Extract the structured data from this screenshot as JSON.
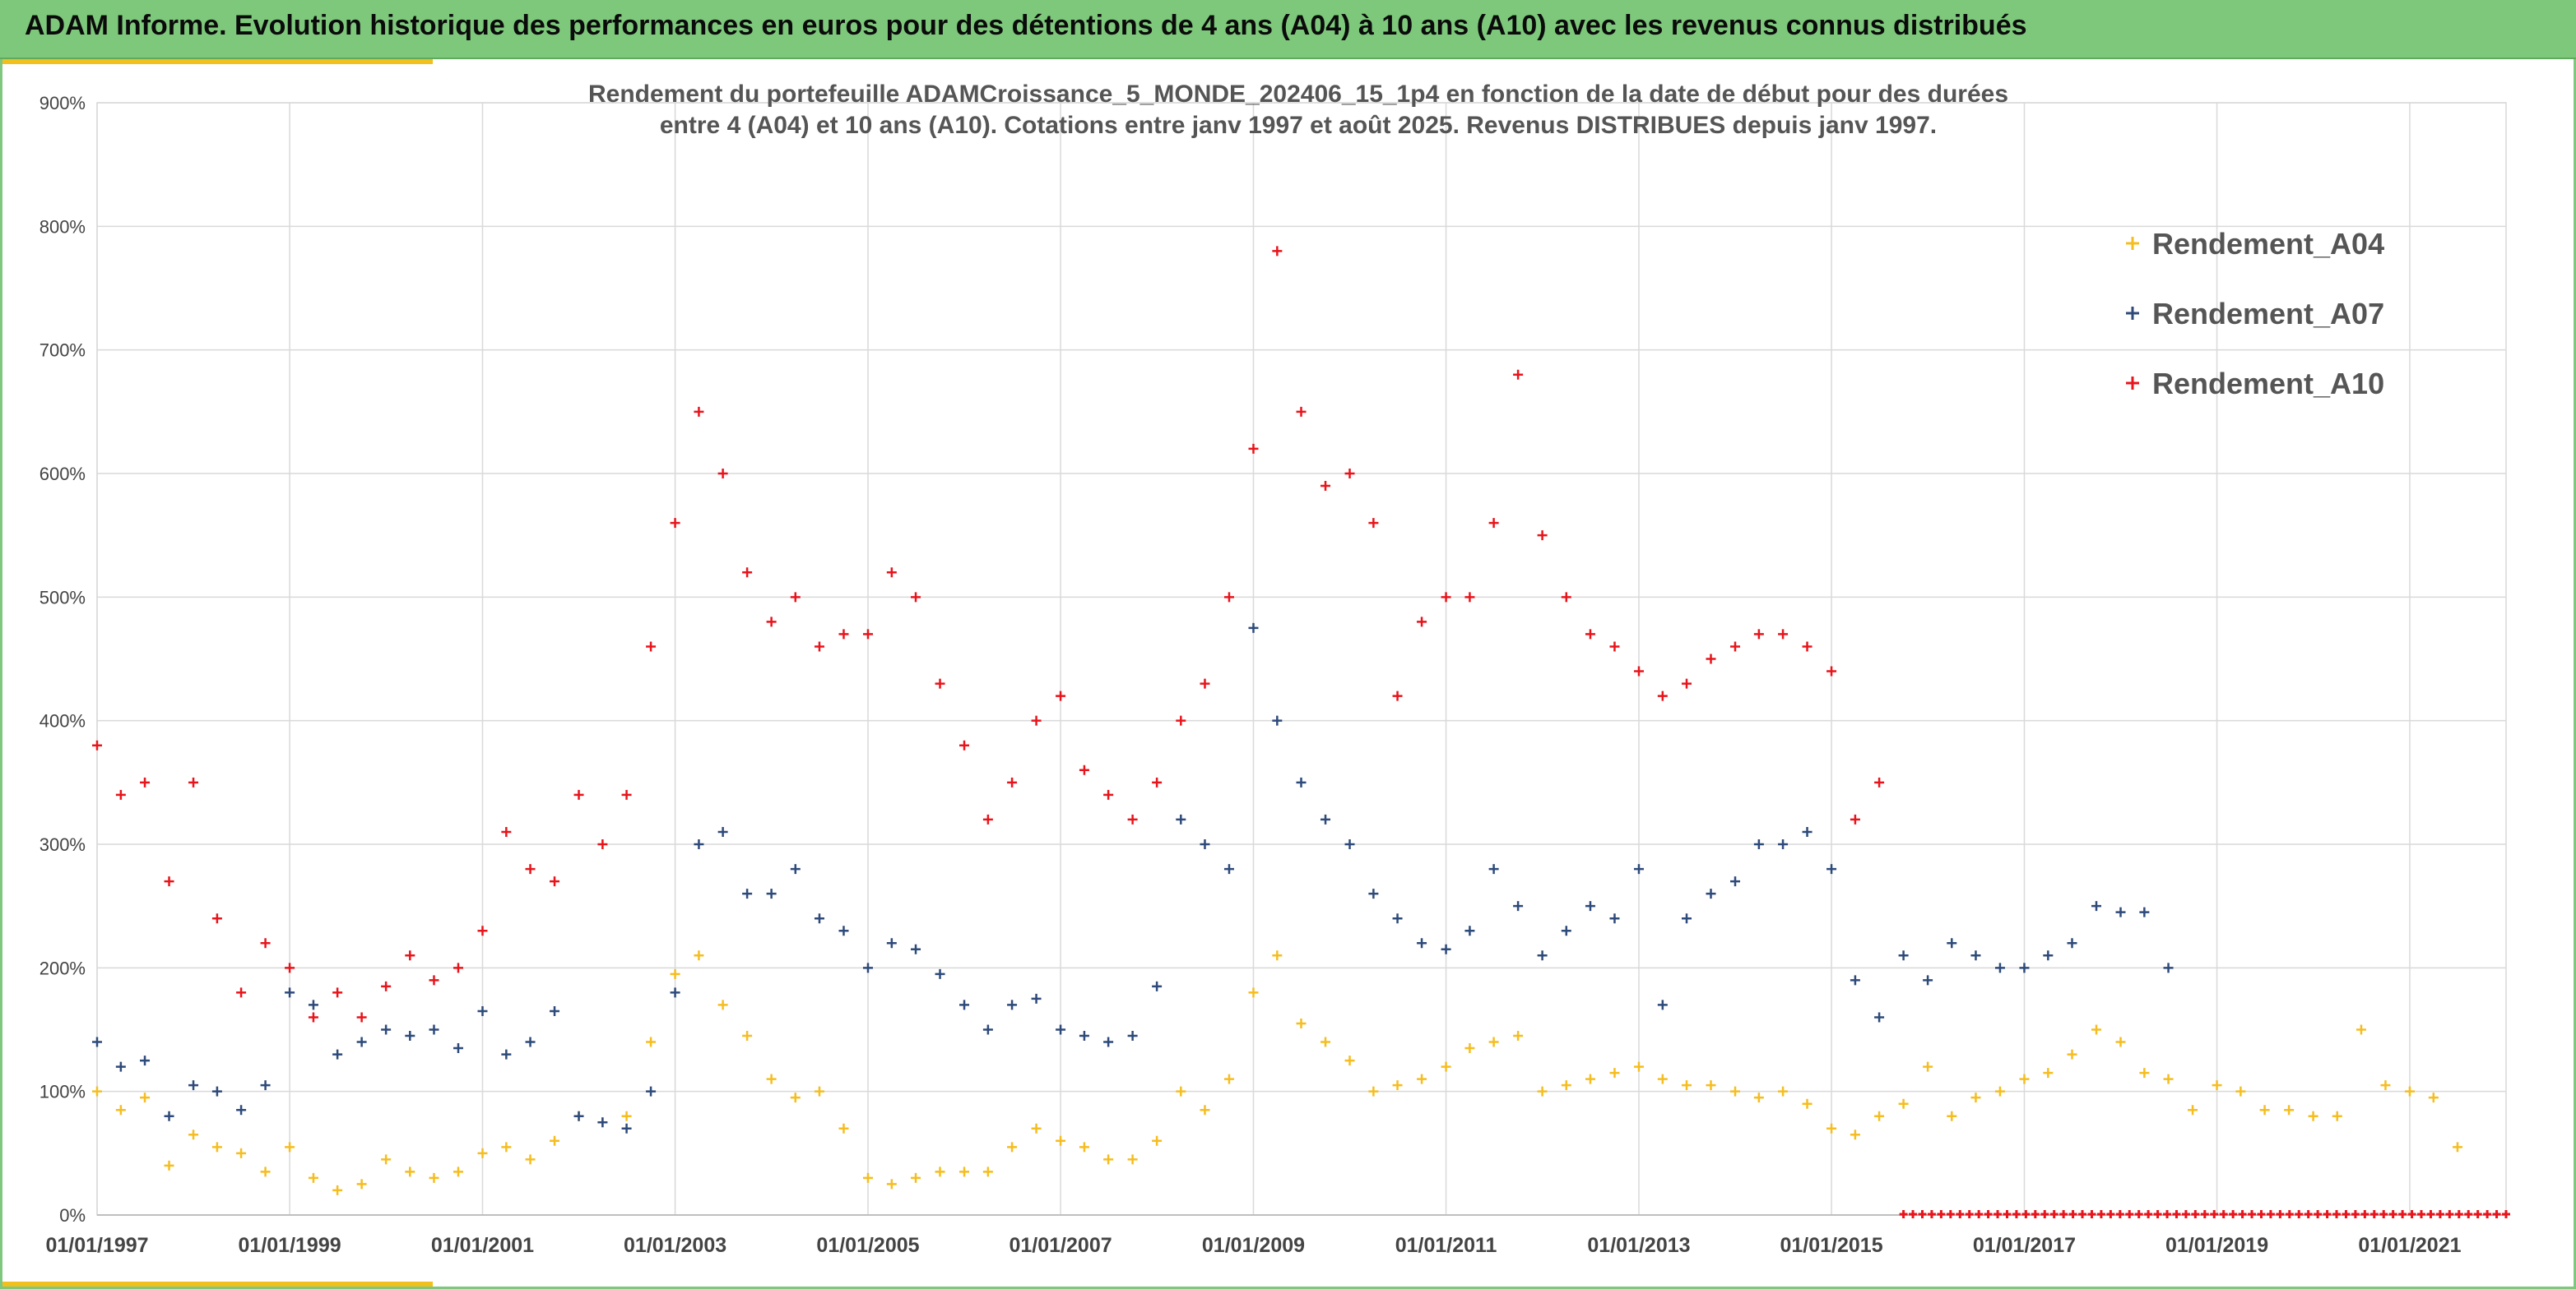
{
  "banner": {
    "title": "ADAM Informe. Evolution historique des performances en euros pour des détentions de 4 ans (A04) à 10 ans (A10) avec les revenus connus distribués"
  },
  "colors": {
    "banner_bg": "#7dc87b",
    "accent_gold": "#f2c01c",
    "A04": "#f5bd1f",
    "A07": "#2d4a7a",
    "A10": "#e8141b"
  },
  "chart_data": {
    "type": "scatter",
    "title_lines": [
      "Rendement du portefeuille ADAMCroissance_5_MONDE_202406_15_1p4  en fonction de la date de début pour des durées",
      "entre 4 (A04) et 10 ans (A10). Cotations entre janv 1997 et août 2025. Revenus DISTRIBUES depuis janv 1997."
    ],
    "xlabel": "",
    "ylabel": "",
    "xlim": [
      "1997-01-01",
      "2022-01-01"
    ],
    "ylim": [
      0,
      900
    ],
    "y_ticks": [
      0,
      100,
      200,
      300,
      400,
      500,
      600,
      700,
      800,
      900
    ],
    "y_tick_labels": [
      "0%",
      "100%",
      "200%",
      "300%",
      "400%",
      "500%",
      "600%",
      "700%",
      "800%",
      "900%"
    ],
    "x_ticks": [
      "1997-01-01",
      "1999-01-01",
      "2001-01-01",
      "2003-01-01",
      "2005-01-01",
      "2007-01-01",
      "2009-01-01",
      "2011-01-01",
      "2013-01-01",
      "2015-01-01",
      "2017-01-01",
      "2019-01-01",
      "2021-01-01"
    ],
    "x_tick_labels": [
      "01/01/1997",
      "01/01/1999",
      "01/01/2001",
      "01/01/2003",
      "01/01/2005",
      "01/01/2007",
      "01/01/2009",
      "01/01/2011",
      "01/01/2013",
      "01/01/2015",
      "01/01/2017",
      "01/01/2019",
      "01/01/2021"
    ],
    "grid": true,
    "marker": "+",
    "legend_position": "top-right",
    "series": [
      {
        "name": "Rendement_A04",
        "color": "#f5bd1f",
        "x": [
          "1997-01-01",
          "1997-04-01",
          "1997-07-01",
          "1997-10-01",
          "1998-01-01",
          "1998-04-01",
          "1998-07-01",
          "1998-10-01",
          "1999-01-01",
          "1999-04-01",
          "1999-07-01",
          "1999-10-01",
          "2000-01-01",
          "2000-04-01",
          "2000-07-01",
          "2000-10-01",
          "2001-01-01",
          "2001-04-01",
          "2001-07-01",
          "2001-10-01",
          "2002-01-01",
          "2002-04-01",
          "2002-07-01",
          "2002-10-01",
          "2003-01-01",
          "2003-04-01",
          "2003-07-01",
          "2003-10-01",
          "2004-01-01",
          "2004-04-01",
          "2004-07-01",
          "2004-10-01",
          "2005-01-01",
          "2005-04-01",
          "2005-07-01",
          "2005-10-01",
          "2006-01-01",
          "2006-04-01",
          "2006-07-01",
          "2006-10-01",
          "2007-01-01",
          "2007-04-01",
          "2007-07-01",
          "2007-10-01",
          "2008-01-01",
          "2008-04-01",
          "2008-07-01",
          "2008-10-01",
          "2009-01-01",
          "2009-04-01",
          "2009-07-01",
          "2009-10-01",
          "2010-01-01",
          "2010-04-01",
          "2010-07-01",
          "2010-10-01",
          "2011-01-01",
          "2011-04-01",
          "2011-07-01",
          "2011-10-01",
          "2012-01-01",
          "2012-04-01",
          "2012-07-01",
          "2012-10-01",
          "2013-01-01",
          "2013-04-01",
          "2013-07-01",
          "2013-10-01",
          "2014-01-01",
          "2014-04-01",
          "2014-07-01",
          "2014-10-01",
          "2015-01-01",
          "2015-04-01",
          "2015-07-01",
          "2015-10-01",
          "2016-01-01",
          "2016-04-01",
          "2016-07-01",
          "2016-10-01",
          "2017-01-01",
          "2017-04-01",
          "2017-07-01",
          "2017-10-01",
          "2018-01-01",
          "2018-04-01",
          "2018-07-01",
          "2018-10-01",
          "2019-01-01",
          "2019-04-01",
          "2019-07-01",
          "2019-10-01",
          "2020-01-01",
          "2020-04-01",
          "2020-07-01",
          "2020-10-01",
          "2021-01-01",
          "2021-04-01",
          "2021-07-01"
        ],
        "y": [
          100,
          85,
          95,
          40,
          65,
          55,
          50,
          35,
          55,
          30,
          20,
          25,
          45,
          35,
          30,
          35,
          50,
          55,
          45,
          60,
          80,
          75,
          80,
          140,
          195,
          210,
          170,
          145,
          110,
          95,
          100,
          70,
          30,
          25,
          30,
          35,
          35,
          35,
          55,
          70,
          60,
          55,
          45,
          45,
          60,
          100,
          85,
          110,
          180,
          210,
          155,
          140,
          125,
          100,
          105,
          110,
          120,
          135,
          140,
          145,
          100,
          105,
          110,
          115,
          120,
          110,
          105,
          105,
          100,
          95,
          100,
          90,
          70,
          65,
          80,
          90,
          120,
          80,
          95,
          100,
          110,
          115,
          130,
          150,
          140,
          115,
          110,
          85,
          105,
          100,
          85,
          85,
          80,
          80,
          150,
          105,
          100,
          95,
          55
        ]
      },
      {
        "name": "Rendement_A07",
        "color": "#2d4a7a",
        "x": [
          "1997-01-01",
          "1997-04-01",
          "1997-07-01",
          "1997-10-01",
          "1998-01-01",
          "1998-04-01",
          "1998-07-01",
          "1998-10-01",
          "1999-01-01",
          "1999-04-01",
          "1999-07-01",
          "1999-10-01",
          "2000-01-01",
          "2000-04-01",
          "2000-07-01",
          "2000-10-01",
          "2001-01-01",
          "2001-04-01",
          "2001-07-01",
          "2001-10-01",
          "2002-01-01",
          "2002-04-01",
          "2002-07-01",
          "2002-10-01",
          "2003-01-01",
          "2003-04-01",
          "2003-07-01",
          "2003-10-01",
          "2004-01-01",
          "2004-04-01",
          "2004-07-01",
          "2004-10-01",
          "2005-01-01",
          "2005-04-01",
          "2005-07-01",
          "2005-10-01",
          "2006-01-01",
          "2006-04-01",
          "2006-07-01",
          "2006-10-01",
          "2007-01-01",
          "2007-04-01",
          "2007-07-01",
          "2007-10-01",
          "2008-01-01",
          "2008-04-01",
          "2008-07-01",
          "2008-10-01",
          "2009-01-01",
          "2009-04-01",
          "2009-07-01",
          "2009-10-01",
          "2010-01-01",
          "2010-04-01",
          "2010-07-01",
          "2010-10-01",
          "2011-01-01",
          "2011-04-01",
          "2011-07-01",
          "2011-10-01",
          "2012-01-01",
          "2012-04-01",
          "2012-07-01",
          "2012-10-01",
          "2013-01-01",
          "2013-04-01",
          "2013-07-01",
          "2013-10-01",
          "2014-01-01",
          "2014-04-01",
          "2014-07-01",
          "2014-10-01",
          "2015-01-01",
          "2015-04-01",
          "2015-07-01",
          "2015-10-01",
          "2016-01-01",
          "2016-04-01",
          "2016-07-01",
          "2016-10-01",
          "2017-01-01",
          "2017-04-01",
          "2017-07-01",
          "2017-10-01",
          "2018-01-01",
          "2018-04-01",
          "2018-07-01"
        ],
        "y": [
          140,
          120,
          125,
          80,
          105,
          100,
          85,
          105,
          180,
          170,
          130,
          140,
          150,
          145,
          150,
          135,
          165,
          130,
          140,
          165,
          80,
          75,
          70,
          100,
          180,
          300,
          310,
          260,
          260,
          280,
          240,
          230,
          200,
          220,
          215,
          195,
          170,
          150,
          170,
          175,
          150,
          145,
          140,
          145,
          185,
          320,
          300,
          280,
          475,
          400,
          350,
          320,
          300,
          260,
          240,
          220,
          215,
          230,
          280,
          250,
          210,
          230,
          250,
          240,
          280,
          170,
          240,
          260,
          270,
          300,
          300,
          310,
          280,
          190,
          160,
          210,
          190,
          220,
          210,
          200,
          200,
          210,
          220,
          250,
          245,
          245,
          200
        ]
      },
      {
        "name": "Rendement_A10",
        "color": "#e8141b",
        "x": [
          "1997-01-01",
          "1997-04-01",
          "1997-07-01",
          "1997-10-01",
          "1998-01-01",
          "1998-04-01",
          "1998-07-01",
          "1998-10-01",
          "1999-01-01",
          "1999-04-01",
          "1999-07-01",
          "1999-10-01",
          "2000-01-01",
          "2000-04-01",
          "2000-07-01",
          "2000-10-01",
          "2001-01-01",
          "2001-04-01",
          "2001-07-01",
          "2001-10-01",
          "2002-01-01",
          "2002-04-01",
          "2002-07-01",
          "2002-10-01",
          "2003-01-01",
          "2003-04-01",
          "2003-07-01",
          "2003-10-01",
          "2004-01-01",
          "2004-04-01",
          "2004-07-01",
          "2004-10-01",
          "2005-01-01",
          "2005-04-01",
          "2005-07-01",
          "2005-10-01",
          "2006-01-01",
          "2006-04-01",
          "2006-07-01",
          "2006-10-01",
          "2007-01-01",
          "2007-04-01",
          "2007-07-01",
          "2007-10-01",
          "2008-01-01",
          "2008-04-01",
          "2008-07-01",
          "2008-10-01",
          "2009-01-01",
          "2009-04-01",
          "2009-07-01",
          "2009-10-01",
          "2010-01-01",
          "2010-04-01",
          "2010-07-01",
          "2010-10-01",
          "2011-01-01",
          "2011-04-01",
          "2011-07-01",
          "2011-10-01",
          "2012-01-01",
          "2012-04-01",
          "2012-07-01",
          "2012-10-01",
          "2013-01-01",
          "2013-04-01",
          "2013-07-01",
          "2013-10-01",
          "2014-01-01",
          "2014-04-01",
          "2014-07-01",
          "2014-10-01",
          "2015-01-01",
          "2015-04-01",
          "2015-07-01"
        ],
        "y": [
          380,
          340,
          350,
          270,
          350,
          240,
          180,
          220,
          200,
          160,
          180,
          160,
          185,
          210,
          190,
          200,
          230,
          310,
          280,
          270,
          340,
          300,
          340,
          460,
          560,
          650,
          600,
          520,
          480,
          500,
          460,
          470,
          470,
          520,
          500,
          430,
          380,
          320,
          350,
          400,
          420,
          360,
          340,
          320,
          350,
          400,
          430,
          500,
          620,
          780,
          650,
          590,
          600,
          560,
          420,
          480,
          500,
          500,
          560,
          680,
          550,
          500,
          470,
          460,
          440,
          420,
          430,
          450,
          460,
          470,
          470,
          460,
          440,
          320,
          350
        ]
      }
    ],
    "ground_marker_color": "#e8141b"
  }
}
